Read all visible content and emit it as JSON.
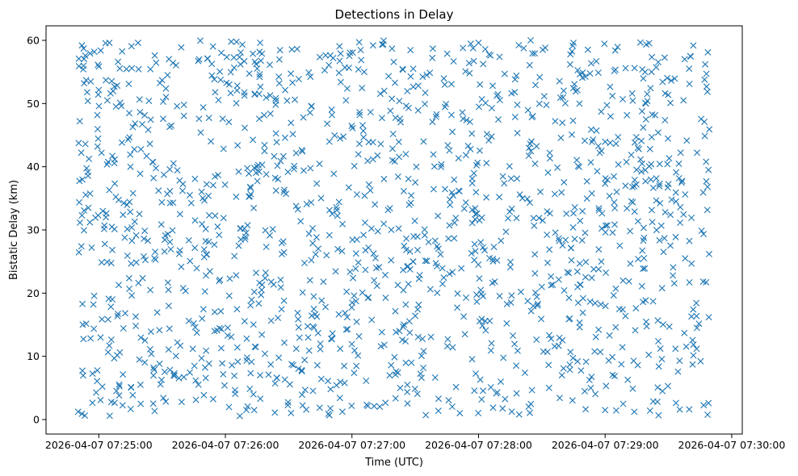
{
  "chart_data": {
    "type": "scatter",
    "title": "Detections in Delay",
    "xlabel": "Time (UTC)",
    "ylabel": "Bistatic Delay (km)",
    "marker": "x",
    "color": "#1f77b4",
    "grid": false,
    "legend": "none",
    "x_type": "time",
    "xlim": [
      "2026-04-07 07:24:35",
      "2026-04-07 07:30:05"
    ],
    "ylim": [
      -2.3,
      62.3
    ],
    "x_ticks": [
      "2026-04-07 07:25:00",
      "2026-04-07 07:26:00",
      "2026-04-07 07:27:00",
      "2026-04-07 07:28:00",
      "2026-04-07 07:29:00",
      "2026-04-07 07:30:00"
    ],
    "y_ticks": [
      "0",
      "10",
      "20",
      "30",
      "40",
      "50",
      "60"
    ],
    "x_range": [
      "2026-04-07 07:24:50",
      "2026-04-07 07:29:50"
    ],
    "y_range": [
      0.5,
      60
    ],
    "point_count_estimate": 1500,
    "points_sample": [
      {
        "x": "2026-04-07 07:24:52",
        "y": 59.2
      },
      {
        "x": "2026-04-07 07:24:51",
        "y": 47.2
      },
      {
        "x": "2026-04-07 07:24:52",
        "y": 32.3
      },
      {
        "x": "2026-04-07 07:24:52",
        "y": 0.9
      },
      {
        "x": "2026-04-07 07:25:05",
        "y": 59.6
      },
      {
        "x": "2026-04-07 07:25:15",
        "y": 40.0
      },
      {
        "x": "2026-04-07 07:25:30",
        "y": 53.7
      },
      {
        "x": "2026-04-07 07:25:45",
        "y": 15.2
      },
      {
        "x": "2026-04-07 07:26:15",
        "y": 40.0
      },
      {
        "x": "2026-04-07 07:26:45",
        "y": 12.0
      },
      {
        "x": "2026-04-07 07:27:10",
        "y": 59.2
      },
      {
        "x": "2026-04-07 07:27:35",
        "y": 0.7
      },
      {
        "x": "2026-04-07 07:28:00",
        "y": 59.6
      },
      {
        "x": "2026-04-07 07:28:30",
        "y": 21.0
      },
      {
        "x": "2026-04-07 07:28:45",
        "y": 59.6
      },
      {
        "x": "2026-04-07 07:29:00",
        "y": 1.5
      },
      {
        "x": "2026-04-07 07:29:20",
        "y": 50.4
      },
      {
        "x": "2026-04-07 07:29:48",
        "y": 54.7
      },
      {
        "x": "2026-04-07 07:29:49",
        "y": 39.5
      },
      {
        "x": "2026-04-07 07:29:49",
        "y": 2.6
      }
    ]
  }
}
